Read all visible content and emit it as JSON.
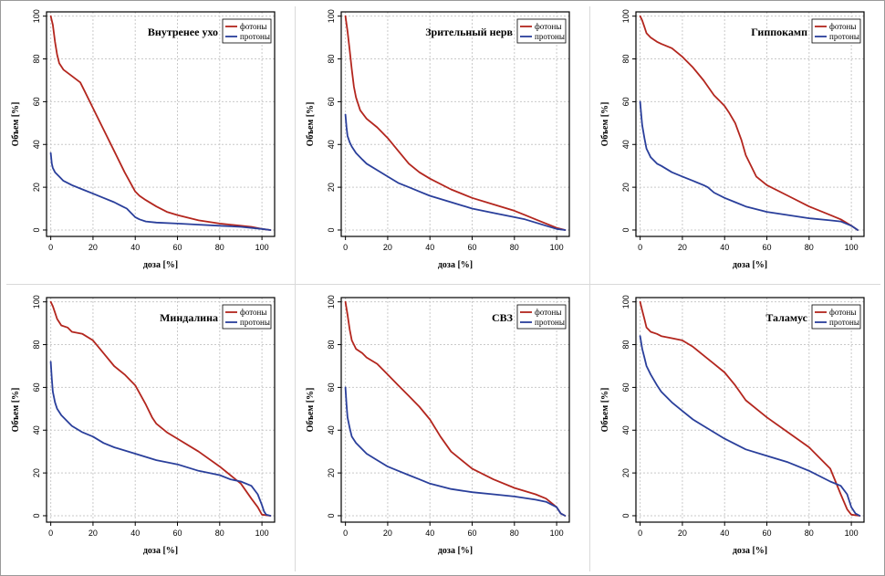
{
  "colors": {
    "photons": "#b3261e",
    "protons": "#2a3f9b",
    "grid": "#c9c9c9",
    "axis": "#000000"
  },
  "chart_data": [
    {
      "type": "line",
      "title": "Внутренее ухо",
      "xlabel": "доза [%]",
      "ylabel": "Объем [%]",
      "xlim": [
        -2,
        106
      ],
      "ylim": [
        -3,
        102
      ],
      "xticks": [
        0,
        20,
        40,
        60,
        80,
        100
      ],
      "yticks": [
        0,
        20,
        40,
        60,
        80,
        100
      ],
      "grid": true,
      "legend": "top-right",
      "series": [
        {
          "name": "фотоны",
          "x": [
            0,
            1,
            2,
            3,
            4,
            6,
            10,
            14,
            16,
            20,
            25,
            30,
            35,
            40,
            42,
            45,
            50,
            55,
            60,
            70,
            80,
            90,
            95,
            100,
            104
          ],
          "y": [
            100,
            96,
            88,
            82,
            78,
            75,
            72,
            69,
            65,
            57,
            47,
            37,
            27,
            18,
            16,
            14,
            11,
            8.5,
            7,
            4.5,
            3,
            2,
            1.5,
            0.5,
            0
          ]
        },
        {
          "name": "протоны",
          "x": [
            0,
            0.5,
            1,
            2,
            4,
            6,
            10,
            15,
            20,
            25,
            30,
            34,
            36,
            38,
            40,
            42,
            45,
            50,
            60,
            70,
            80,
            90,
            100,
            104
          ],
          "y": [
            36,
            31,
            29,
            27,
            25,
            23,
            21,
            19,
            17,
            15,
            13,
            11,
            10,
            8,
            6,
            5,
            4,
            3.5,
            3,
            2.5,
            2,
            1.5,
            0.5,
            0
          ]
        }
      ]
    },
    {
      "type": "line",
      "title": "Зрительный нерв",
      "xlabel": "доза [%]",
      "ylabel": "Объем [%]",
      "xlim": [
        -2,
        106
      ],
      "ylim": [
        -3,
        102
      ],
      "xticks": [
        0,
        20,
        40,
        60,
        80,
        100
      ],
      "yticks": [
        0,
        20,
        40,
        60,
        80,
        100
      ],
      "grid": true,
      "legend": "top-right",
      "series": [
        {
          "name": "фотоны",
          "x": [
            0,
            1,
            2,
            3,
            4,
            5,
            7,
            10,
            15,
            20,
            25,
            30,
            35,
            40,
            50,
            60,
            70,
            80,
            85,
            90,
            95,
            100,
            104
          ],
          "y": [
            100,
            93,
            84,
            75,
            67,
            62,
            56,
            52,
            48,
            43,
            37,
            31,
            27,
            24,
            19,
            15,
            12,
            9,
            7,
            5,
            3,
            1,
            0
          ]
        },
        {
          "name": "протоны",
          "x": [
            0,
            0.5,
            1,
            2,
            3,
            5,
            8,
            10,
            15,
            20,
            25,
            30,
            35,
            40,
            50,
            60,
            70,
            80,
            85,
            90,
            95,
            100,
            104
          ],
          "y": [
            54,
            48,
            44,
            41,
            39,
            36,
            33,
            31,
            28,
            25,
            22,
            20,
            18,
            16,
            13,
            10,
            8,
            6,
            5,
            3.5,
            2,
            0.5,
            0
          ]
        }
      ]
    },
    {
      "type": "line",
      "title": "Гиппокамп",
      "xlabel": "доза [%]",
      "ylabel": "Объем [%]",
      "xlim": [
        -2,
        106
      ],
      "ylim": [
        -3,
        102
      ],
      "xticks": [
        0,
        20,
        40,
        60,
        80,
        100
      ],
      "yticks": [
        0,
        20,
        40,
        60,
        80,
        100
      ],
      "grid": true,
      "legend": "top-right",
      "series": [
        {
          "name": "фотоны",
          "x": [
            0,
            1,
            2,
            3,
            5,
            8,
            10,
            15,
            20,
            25,
            30,
            35,
            38,
            40,
            42,
            45,
            48,
            50,
            55,
            60,
            70,
            80,
            90,
            95,
            100,
            103
          ],
          "y": [
            100,
            98,
            95,
            92,
            90,
            88,
            87,
            85,
            81,
            76,
            70,
            63,
            60,
            58,
            55,
            50,
            42,
            35,
            25,
            21,
            16,
            11,
            7,
            5,
            2,
            0
          ]
        },
        {
          "name": "протоны",
          "x": [
            0,
            0.5,
            1,
            2,
            3,
            5,
            8,
            10,
            15,
            20,
            25,
            30,
            32,
            35,
            40,
            45,
            50,
            60,
            70,
            80,
            90,
            95,
            100,
            103
          ],
          "y": [
            60,
            54,
            49,
            43,
            38,
            34,
            31,
            30,
            27,
            25,
            23,
            21,
            20,
            17.5,
            15,
            13,
            11,
            8.5,
            7,
            5.5,
            4.5,
            4,
            2,
            0
          ]
        }
      ]
    },
    {
      "type": "line",
      "title": "Миндалина",
      "xlabel": "доза [%]",
      "ylabel": "Объем [%]",
      "xlim": [
        -2,
        106
      ],
      "ylim": [
        -3,
        102
      ],
      "xticks": [
        0,
        20,
        40,
        60,
        80,
        100
      ],
      "yticks": [
        0,
        20,
        40,
        60,
        80,
        100
      ],
      "grid": true,
      "legend": "top-right",
      "series": [
        {
          "name": "фотоны",
          "x": [
            0,
            1,
            2,
            3,
            5,
            8,
            10,
            15,
            20,
            25,
            30,
            35,
            40,
            45,
            48,
            50,
            55,
            60,
            70,
            80,
            90,
            95,
            98,
            100,
            104
          ],
          "y": [
            100,
            98,
            95,
            92,
            89,
            88,
            86,
            85,
            82,
            76,
            70,
            66,
            61,
            52,
            46,
            43,
            39,
            36,
            30,
            23,
            15,
            8,
            4,
            0.5,
            0
          ]
        },
        {
          "name": "протоны",
          "x": [
            0,
            0.5,
            1,
            2,
            3,
            5,
            8,
            10,
            15,
            20,
            25,
            30,
            40,
            50,
            60,
            70,
            80,
            85,
            90,
            95,
            98,
            100,
            101,
            102,
            104
          ],
          "y": [
            72,
            64,
            58,
            53,
            50,
            47,
            44,
            42,
            39,
            37,
            34,
            32,
            29,
            26,
            24,
            21,
            19,
            17,
            16,
            14,
            10,
            5,
            2,
            0.5,
            0
          ]
        }
      ]
    },
    {
      "type": "line",
      "title": "СВЗ",
      "xlabel": "доза [%]",
      "ylabel": "Объем [%]",
      "xlim": [
        -2,
        106
      ],
      "ylim": [
        -3,
        102
      ],
      "xticks": [
        0,
        20,
        40,
        60,
        80,
        100
      ],
      "yticks": [
        0,
        20,
        40,
        60,
        80,
        100
      ],
      "grid": true,
      "legend": "top-right",
      "series": [
        {
          "name": "фотоны",
          "x": [
            0,
            1,
            2,
            3,
            5,
            8,
            10,
            15,
            20,
            25,
            30,
            35,
            40,
            45,
            50,
            55,
            60,
            70,
            80,
            90,
            95,
            100,
            102,
            104
          ],
          "y": [
            100,
            94,
            87,
            82,
            78,
            76,
            74,
            71,
            66,
            61,
            56,
            51,
            45,
            37,
            30,
            26,
            22,
            17,
            13,
            10,
            8,
            4,
            1,
            0
          ]
        },
        {
          "name": "протоны",
          "x": [
            0,
            0.5,
            1,
            2,
            3,
            5,
            8,
            10,
            15,
            20,
            25,
            30,
            35,
            40,
            50,
            60,
            70,
            80,
            90,
            95,
            100,
            102,
            104
          ],
          "y": [
            60,
            52,
            46,
            41,
            37,
            34,
            31,
            29,
            26,
            23,
            21,
            19,
            17,
            15,
            12.5,
            11,
            10,
            9,
            7.5,
            6.5,
            4,
            1,
            0
          ]
        }
      ]
    },
    {
      "type": "line",
      "title": "Таламус",
      "xlabel": "доза [%]",
      "ylabel": "Объем [%]",
      "xlim": [
        -2,
        106
      ],
      "ylim": [
        -3,
        102
      ],
      "xticks": [
        0,
        20,
        40,
        60,
        80,
        100
      ],
      "yticks": [
        0,
        20,
        40,
        60,
        80,
        100
      ],
      "grid": true,
      "legend": "top-right",
      "series": [
        {
          "name": "фотоны",
          "x": [
            0,
            1,
            2,
            3,
            5,
            8,
            10,
            15,
            20,
            25,
            30,
            35,
            40,
            45,
            50,
            55,
            60,
            70,
            80,
            90,
            95,
            98,
            100,
            104
          ],
          "y": [
            100,
            96,
            92,
            88,
            86,
            85,
            84,
            83,
            82,
            79,
            75,
            71,
            67,
            61,
            54,
            50,
            46,
            39,
            32,
            22,
            10,
            3,
            0.5,
            0
          ]
        },
        {
          "name": "протоны",
          "x": [
            0,
            1,
            2,
            3,
            5,
            8,
            10,
            15,
            20,
            25,
            30,
            40,
            50,
            60,
            70,
            80,
            90,
            95,
            98,
            100,
            102,
            104
          ],
          "y": [
            84,
            78,
            74,
            70,
            66,
            61,
            58,
            53,
            49,
            45,
            42,
            36,
            31,
            28,
            25,
            21,
            16,
            14,
            10,
            4,
            1,
            0
          ]
        }
      ]
    }
  ]
}
